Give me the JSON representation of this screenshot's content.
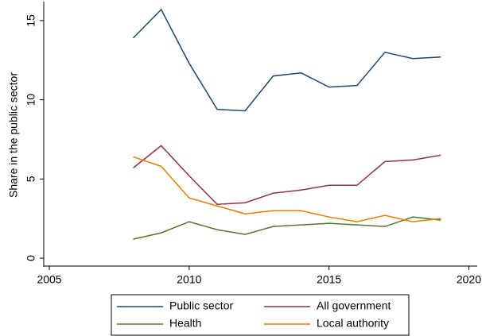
{
  "chart_data": {
    "type": "line",
    "y_label": "Share in the public sector",
    "x": [
      2008,
      2009,
      2010,
      2011,
      2012,
      2013,
      2014,
      2015,
      2016,
      2017,
      2018,
      2019
    ],
    "series": [
      {
        "name": "Public sector",
        "color": "#1a476f",
        "values": [
          13.9,
          15.7,
          12.3,
          9.4,
          9.3,
          11.5,
          11.7,
          10.8,
          10.9,
          13.0,
          12.6,
          12.7
        ]
      },
      {
        "name": "All government",
        "color": "#90353b",
        "values": [
          5.7,
          7.1,
          5.2,
          3.4,
          3.5,
          4.1,
          4.3,
          4.6,
          4.6,
          6.1,
          6.2,
          6.5
        ]
      },
      {
        "name": "Health",
        "color": "#55752f",
        "values": [
          1.2,
          1.6,
          2.3,
          1.8,
          1.5,
          2.0,
          2.1,
          2.2,
          2.1,
          2.0,
          2.6,
          2.4
        ]
      },
      {
        "name": "Local authority",
        "color": "#e37e00",
        "values": [
          6.4,
          5.8,
          3.8,
          3.3,
          2.8,
          3.0,
          3.0,
          2.6,
          2.3,
          2.7,
          2.3,
          2.5
        ]
      }
    ],
    "xlim": [
      2004.8,
      2020.3
    ],
    "xticks": [
      2005,
      2010,
      2015,
      2020
    ],
    "ylim": [
      -0.5,
      16.2
    ],
    "yticks": [
      0,
      5,
      10,
      15
    ],
    "grid": false,
    "legend": "bottom"
  }
}
